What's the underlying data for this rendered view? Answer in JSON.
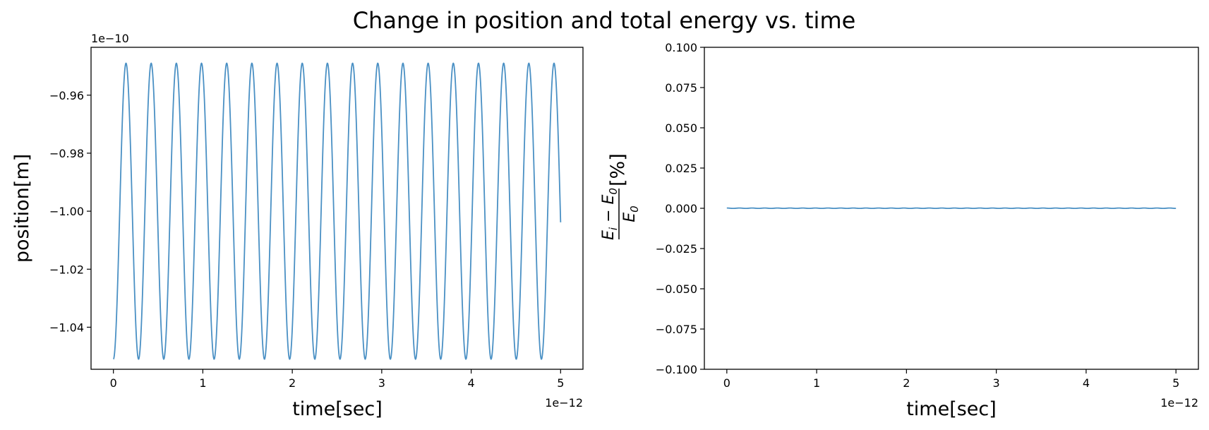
{
  "title": "Change in position and total energy vs. time",
  "colors": {
    "line": "#4a90c4",
    "axes": "#000000",
    "background": "#ffffff"
  },
  "chart_data": [
    {
      "type": "line",
      "xlabel": "time[sec]",
      "ylabel": "position[m]",
      "x_offset_text": "1e−12",
      "y_offset_text": "1e−10",
      "xlim": [
        -2.5e-13,
        5.25e-12
      ],
      "ylim": [
        -1.0545e-10,
        -9.435e-11
      ],
      "x_ticks": [
        0,
        1e-12,
        2e-12,
        3e-12,
        4e-12,
        5e-12
      ],
      "x_tick_labels": [
        "0",
        "1",
        "2",
        "3",
        "4",
        "5"
      ],
      "y_ticks": [
        -1.04e-10,
        -1.02e-10,
        -1e-10,
        -9.8e-11,
        -9.6e-11
      ],
      "y_tick_labels": [
        "−1.04",
        "−1.02",
        "−1.00",
        "−0.98",
        "−0.96"
      ],
      "grid": false,
      "series": [
        {
          "function": "cosine",
          "center": -1e-10,
          "amplitude": 5.1e-12,
          "period": 2.815e-13,
          "phase": 3.14159,
          "x_start": 0,
          "x_end": 5e-12,
          "samples": 2000
        }
      ]
    },
    {
      "type": "line",
      "xlabel": "time[sec]",
      "ylabel_numerator": "E",
      "ylabel_numerator_sub": "i",
      "ylabel_minus": " − ",
      "ylabel_numerator_2": "E",
      "ylabel_numerator_2_sub": "0",
      "ylabel_denominator": "E",
      "ylabel_denominator_sub": "0",
      "ylabel_unit": "[%]",
      "x_offset_text": "1e−12",
      "xlim": [
        -2.5e-13,
        5.25e-12
      ],
      "ylim": [
        -0.1,
        0.1
      ],
      "x_ticks": [
        0,
        1e-12,
        2e-12,
        3e-12,
        4e-12,
        5e-12
      ],
      "x_tick_labels": [
        "0",
        "1",
        "2",
        "3",
        "4",
        "5"
      ],
      "y_ticks": [
        -0.1,
        -0.075,
        -0.05,
        -0.025,
        0.0,
        0.025,
        0.05,
        0.075,
        0.1
      ],
      "y_tick_labels": [
        "−0.100",
        "−0.075",
        "−0.050",
        "−0.025",
        "0.000",
        "0.025",
        "0.050",
        "0.075",
        "0.100"
      ],
      "grid": false,
      "series": [
        {
          "function": "cosine",
          "center": 5e-05,
          "amplitude": 0.00012,
          "period": 1.408e-13,
          "phase": 0,
          "x_start": 0,
          "x_end": 5e-12,
          "samples": 2000
        }
      ]
    }
  ]
}
